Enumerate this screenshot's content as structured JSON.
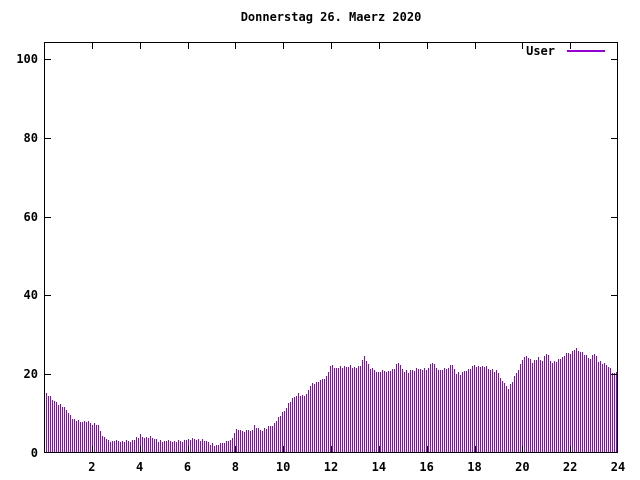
{
  "chart": {
    "title": "Donnerstag 26. Maerz 2020",
    "legend": {
      "label": "User",
      "color": "#9400d3"
    },
    "axis_color": "#000000",
    "background_color": "#ffffff"
  },
  "chart_data": {
    "type": "bar",
    "subtype": "impulses",
    "title": "Donnerstag 26. Maerz 2020",
    "xlabel": "",
    "ylabel": "",
    "xlim": [
      0,
      24
    ],
    "ylim": [
      0,
      100
    ],
    "xticks": [
      2,
      4,
      6,
      8,
      10,
      12,
      14,
      16,
      18,
      20,
      22,
      24
    ],
    "yticks": [
      0,
      20,
      40,
      60,
      80,
      100
    ],
    "grid": false,
    "legend_position": "top-right",
    "series": [
      {
        "name": "User",
        "color": "#9400d3",
        "x_start_hours": 0.0,
        "x_interval_hours": 0.2,
        "values": [
          15.5,
          14.5,
          13,
          12.5,
          11.5,
          10.5,
          8.5,
          8,
          8,
          8,
          7.5,
          7.5,
          5,
          3.2,
          3,
          3,
          3,
          3,
          3.2,
          3.6,
          4.5,
          4,
          4.2,
          3.8,
          3.2,
          3,
          3,
          3,
          3,
          3.2,
          3.4,
          3.5,
          3.5,
          3.3,
          2.8,
          2.2,
          1.8,
          2.4,
          3,
          3.1,
          6.2,
          5.6,
          5.8,
          5.4,
          6.8,
          5.8,
          6,
          6.6,
          7.6,
          9,
          10.5,
          12.5,
          14,
          15.2,
          14.4,
          15.5,
          17.5,
          18,
          18.5,
          19.5,
          22.5,
          21.5,
          22,
          21.8,
          22.2,
          21.5,
          22,
          24.6,
          21.5,
          21,
          20.5,
          21,
          20.8,
          21.2,
          22.8,
          21,
          20.5,
          21,
          21.5,
          21,
          21.2,
          23.2,
          21.5,
          21,
          21.5,
          22.5,
          20.5,
          19.8,
          21,
          21.5,
          22.3,
          22,
          21.8,
          21.4,
          21,
          20.5,
          17.5,
          16.5,
          18.5,
          21,
          23.8,
          24.8,
          23,
          24,
          23.5,
          25.4,
          23,
          23.5,
          24,
          25,
          25.5,
          26.3,
          26,
          25,
          24,
          25.4,
          23,
          22.5,
          22,
          20,
          21
        ]
      }
    ]
  }
}
